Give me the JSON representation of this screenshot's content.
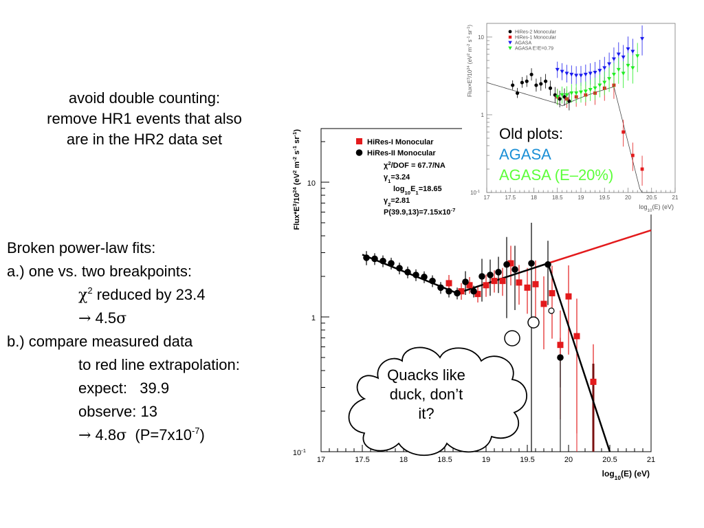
{
  "note_top": [
    "avoid double counting:",
    "remove HR1 events that also",
    "are in the HR2 data set"
  ],
  "fits": {
    "l1": "Broken power-law fits:",
    "l2": "a.) one vs. two breakpoints:",
    "l3_chi": "χ",
    "l3_sup": "2",
    "l3_rest": " reduced by 23.4",
    "l4_arrow": "→",
    "l4_num": " 4.5",
    "l4_sigma": "σ",
    "l5": "b.) compare measured data",
    "l6": "to red line extrapolation:",
    "l7": "expect:   39.9",
    "l8": "observe: 13",
    "l9_arrow": "→",
    "l9_num": " 4.8",
    "l9_sigma": "σ",
    "l9_p": "  (P=7x10",
    "l9_sup": "-7",
    "l9_close": ")"
  },
  "cloud": {
    "text": [
      "Quacks like",
      "duck, don’t",
      "it?"
    ]
  },
  "old_caption": {
    "l1": "Old plots:",
    "l2": "AGASA",
    "l3": "AGASA (E–20%)"
  },
  "colors": {
    "red": "#e31a1c",
    "black": "#000000",
    "blue": "#1a1aee",
    "green": "#22ee22",
    "agasa_text": "#1a8fd6",
    "agasa20_text": "#5cff3a"
  },
  "chart_data": [
    {
      "type": "scatter",
      "xlabel": "log10(E) (eV)",
      "ylabel": "Flux*E3/1024 (eV2 m-2 s-1 sr-1)",
      "xlim": [
        17,
        21
      ],
      "ylim": [
        0.1,
        25
      ],
      "yscale": "log",
      "xticks": [
        "17",
        "17.5",
        "18",
        "18.5",
        "19",
        "19.5",
        "20",
        "20.5",
        "21"
      ],
      "yticks": [
        "10",
        "1",
        "10-1"
      ],
      "legend": [
        {
          "name": "HiRes-I Monocular",
          "color": "#e31a1c",
          "marker": "square"
        },
        {
          "name": "HiRes-II Monocular",
          "color": "#000000",
          "marker": "circle"
        }
      ],
      "legend_position": "top-left",
      "annotations": [
        "χ2/DOF = 67.7/NA",
        "γ1=3.24",
        "log10E1=18.65",
        "γ2=2.81",
        "P(39.9,13)=7.15x10-7"
      ],
      "series": [
        {
          "name": "HiRes-II Monocular",
          "marker": "circle",
          "points": [
            {
              "x": 17.55,
              "y": 2.75
            },
            {
              "x": 17.65,
              "y": 2.7
            },
            {
              "x": 17.75,
              "y": 2.6
            },
            {
              "x": 17.85,
              "y": 2.5
            },
            {
              "x": 17.95,
              "y": 2.3
            },
            {
              "x": 18.05,
              "y": 2.15
            },
            {
              "x": 18.15,
              "y": 2.05
            },
            {
              "x": 18.25,
              "y": 1.98
            },
            {
              "x": 18.35,
              "y": 1.85
            },
            {
              "x": 18.45,
              "y": 1.65
            },
            {
              "x": 18.55,
              "y": 1.55
            },
            {
              "x": 18.65,
              "y": 1.5
            },
            {
              "x": 18.75,
              "y": 1.82
            },
            {
              "x": 18.85,
              "y": 1.55
            },
            {
              "x": 18.95,
              "y": 2.0
            },
            {
              "x": 19.05,
              "y": 2.05
            },
            {
              "x": 19.15,
              "y": 2.15
            },
            {
              "x": 19.25,
              "y": 2.45
            },
            {
              "x": 19.35,
              "y": 2.25
            },
            {
              "x": 19.55,
              "y": 2.5
            },
            {
              "x": 19.75,
              "y": 2.45
            },
            {
              "x": 19.9,
              "y": 0.5
            }
          ]
        },
        {
          "name": "HiRes-I Monocular",
          "marker": "square",
          "points": [
            {
              "x": 18.55,
              "y": 1.78
            },
            {
              "x": 18.7,
              "y": 1.55
            },
            {
              "x": 18.8,
              "y": 1.72
            },
            {
              "x": 18.9,
              "y": 1.48
            },
            {
              "x": 19.0,
              "y": 1.72
            },
            {
              "x": 19.1,
              "y": 1.85
            },
            {
              "x": 19.2,
              "y": 1.85
            },
            {
              "x": 19.3,
              "y": 2.5
            },
            {
              "x": 19.4,
              "y": 1.8
            },
            {
              "x": 19.5,
              "y": 1.65
            },
            {
              "x": 19.6,
              "y": 1.75
            },
            {
              "x": 19.7,
              "y": 1.25
            },
            {
              "x": 19.8,
              "y": 1.5
            },
            {
              "x": 19.9,
              "y": 0.62
            },
            {
              "x": 20.0,
              "y": 1.42
            },
            {
              "x": 20.1,
              "y": 0.72
            },
            {
              "x": 20.3,
              "y": 0.33
            }
          ]
        },
        {
          "name": "fit",
          "type": "line",
          "points": [
            {
              "x": 17.5,
              "y": 2.9
            },
            {
              "x": 18.65,
              "y": 1.5
            },
            {
              "x": 19.75,
              "y": 2.5
            },
            {
              "x": 20.5,
              "y": 0.1
            }
          ]
        },
        {
          "name": "extrapolation",
          "type": "line",
          "points": [
            {
              "x": 19.75,
              "y": 2.5
            },
            {
              "x": 21.0,
              "y": 4.4
            }
          ]
        }
      ]
    },
    {
      "type": "scatter",
      "xlabel": "log10(E) (eV)",
      "ylabel": "Flux×E3/1024 (eV2 m-2 s-1 sr-1)",
      "xlim": [
        17,
        21
      ],
      "ylim": [
        0.1,
        15
      ],
      "yscale": "log",
      "xticks": [
        "17",
        "17.5",
        "18",
        "18.5",
        "19",
        "19.5",
        "20",
        "20.5",
        "21"
      ],
      "yticks": [
        "10",
        "1",
        "10-1"
      ],
      "legend": [
        {
          "name": "HiRes-2 Monocular",
          "color": "#000000",
          "marker": "circle"
        },
        {
          "name": "HiRes-1 Monocular",
          "color": "#e31a1c",
          "marker": "square"
        },
        {
          "name": "AGASA",
          "color": "#1a1aee",
          "marker": "triangle-down"
        },
        {
          "name": "AGASA E'/E=0.79",
          "color": "#22ee22",
          "marker": "triangle-down"
        }
      ],
      "legend_position": "top-left",
      "series": [
        {
          "name": "HiRes-2 Monocular",
          "points": [
            {
              "x": 17.55,
              "y": 2.4
            },
            {
              "x": 17.65,
              "y": 1.9
            },
            {
              "x": 17.75,
              "y": 2.6
            },
            {
              "x": 17.85,
              "y": 2.7
            },
            {
              "x": 17.95,
              "y": 3.3
            },
            {
              "x": 18.05,
              "y": 2.4
            },
            {
              "x": 18.15,
              "y": 2.5
            },
            {
              "x": 18.25,
              "y": 2.7
            },
            {
              "x": 18.35,
              "y": 2.2
            },
            {
              "x": 18.45,
              "y": 1.8
            },
            {
              "x": 18.55,
              "y": 1.6
            },
            {
              "x": 18.65,
              "y": 1.7
            },
            {
              "x": 18.75,
              "y": 1.5
            }
          ]
        },
        {
          "name": "HiRes-1 Monocular",
          "points": [
            {
              "x": 18.5,
              "y": 1.7
            },
            {
              "x": 18.7,
              "y": 1.6
            },
            {
              "x": 18.9,
              "y": 1.7
            },
            {
              "x": 19.1,
              "y": 1.8
            },
            {
              "x": 19.3,
              "y": 1.9
            },
            {
              "x": 19.5,
              "y": 2.2
            },
            {
              "x": 19.7,
              "y": 2.4
            },
            {
              "x": 19.9,
              "y": 0.6
            },
            {
              "x": 20.1,
              "y": 0.3
            },
            {
              "x": 20.3,
              "y": 0.2
            }
          ]
        },
        {
          "name": "AGASA",
          "points": [
            {
              "x": 18.5,
              "y": 3.8
            },
            {
              "x": 18.6,
              "y": 3.6
            },
            {
              "x": 18.7,
              "y": 3.4
            },
            {
              "x": 18.8,
              "y": 3.3
            },
            {
              "x": 18.9,
              "y": 3.2
            },
            {
              "x": 19.0,
              "y": 3.2
            },
            {
              "x": 19.1,
              "y": 3.3
            },
            {
              "x": 19.2,
              "y": 3.4
            },
            {
              "x": 19.3,
              "y": 3.5
            },
            {
              "x": 19.4,
              "y": 3.7
            },
            {
              "x": 19.5,
              "y": 4.0
            },
            {
              "x": 19.6,
              "y": 4.5
            },
            {
              "x": 19.7,
              "y": 5.2
            },
            {
              "x": 19.8,
              "y": 6.0
            },
            {
              "x": 19.9,
              "y": 5.5
            },
            {
              "x": 20.0,
              "y": 7.0
            },
            {
              "x": 20.1,
              "y": 6.5
            },
            {
              "x": 20.3,
              "y": 9.5
            }
          ]
        },
        {
          "name": "AGASA E'/E=0.79",
          "points": [
            {
              "x": 18.5,
              "y": 1.7
            },
            {
              "x": 18.6,
              "y": 1.8
            },
            {
              "x": 18.7,
              "y": 1.8
            },
            {
              "x": 18.8,
              "y": 1.9
            },
            {
              "x": 18.9,
              "y": 1.9
            },
            {
              "x": 19.0,
              "y": 1.95
            },
            {
              "x": 19.1,
              "y": 2.0
            },
            {
              "x": 19.2,
              "y": 2.1
            },
            {
              "x": 19.3,
              "y": 2.2
            },
            {
              "x": 19.4,
              "y": 2.4
            },
            {
              "x": 19.5,
              "y": 2.6
            },
            {
              "x": 19.6,
              "y": 2.9
            },
            {
              "x": 19.7,
              "y": 3.3
            },
            {
              "x": 19.8,
              "y": 3.8
            },
            {
              "x": 19.9,
              "y": 3.4
            },
            {
              "x": 20.0,
              "y": 4.3
            },
            {
              "x": 20.1,
              "y": 4.0
            },
            {
              "x": 20.2,
              "y": 5.7
            }
          ]
        }
      ]
    }
  ]
}
